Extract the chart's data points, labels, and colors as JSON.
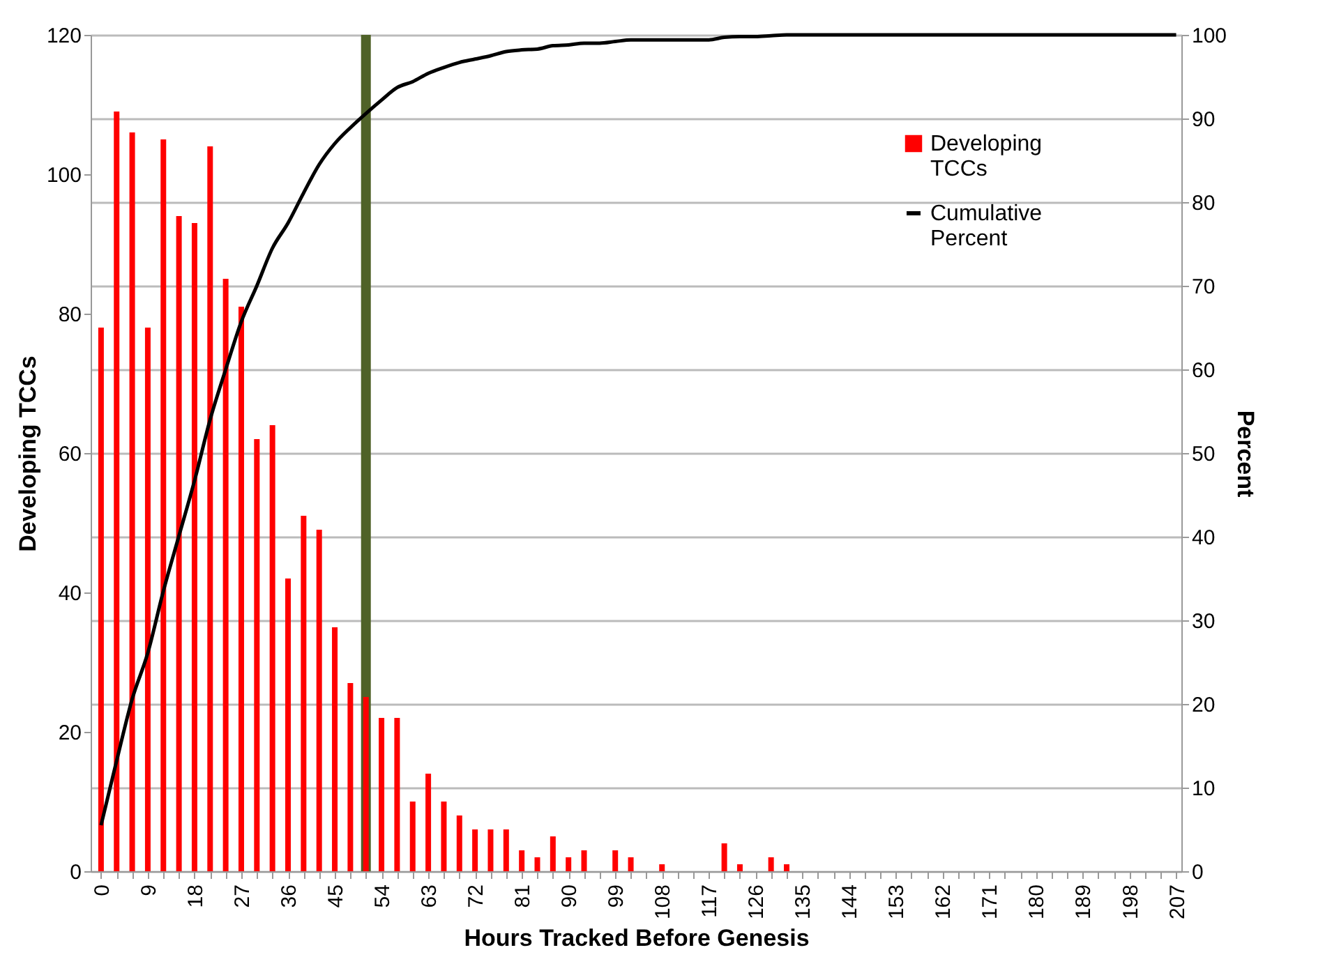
{
  "chart_data": {
    "type": "bar",
    "xlabel": "Hours Tracked Before Genesis",
    "ylabel": "Developing TCCs",
    "y2label": "Percent",
    "x": [
      0,
      3,
      6,
      9,
      12,
      15,
      18,
      21,
      24,
      27,
      30,
      33,
      36,
      39,
      42,
      45,
      48,
      51,
      54,
      57,
      60,
      63,
      66,
      69,
      72,
      75,
      78,
      81,
      84,
      87,
      90,
      93,
      96,
      99,
      102,
      105,
      108,
      111,
      114,
      117,
      120,
      123,
      126,
      129,
      132,
      135,
      138,
      141,
      144,
      147,
      150,
      153,
      156,
      159,
      162,
      165,
      168,
      171,
      174,
      177,
      180,
      183,
      186,
      189,
      192,
      195,
      198,
      201,
      204,
      207
    ],
    "series": [
      {
        "name": "Developing TCCs",
        "color": "#ff0000",
        "values": [
          78,
          109,
          106,
          78,
          105,
          94,
          93,
          104,
          85,
          81,
          62,
          64,
          42,
          51,
          49,
          35,
          27,
          25,
          22,
          22,
          10,
          14,
          10,
          8,
          6,
          6,
          6,
          3,
          2,
          5,
          2,
          3,
          0,
          3,
          2,
          0,
          1,
          0,
          0,
          0,
          4,
          1,
          0,
          2,
          1,
          0,
          0,
          0,
          0,
          0,
          0,
          0,
          0,
          0,
          0,
          0,
          0,
          0,
          0,
          0,
          0,
          0,
          0,
          0,
          0,
          0,
          0,
          0,
          0,
          0
        ]
      },
      {
        "name": "Cumulative Percent",
        "type": "line",
        "axis": "y2",
        "color": "#000000",
        "values": [
          5.5,
          13.2,
          20.6,
          26.1,
          33.5,
          40.1,
          46.7,
          54.0,
          60.0,
          65.7,
          70.0,
          74.5,
          77.5,
          81.1,
          84.5,
          87.0,
          88.9,
          90.6,
          92.2,
          93.7,
          94.4,
          95.4,
          96.1,
          96.7,
          97.1,
          97.5,
          98.0,
          98.2,
          98.3,
          98.7,
          98.8,
          99.0,
          99.0,
          99.2,
          99.4,
          99.4,
          99.4,
          99.4,
          99.4,
          99.4,
          99.7,
          99.8,
          99.8,
          99.9,
          100,
          100,
          100,
          100,
          100,
          100,
          100,
          100,
          100,
          100,
          100,
          100,
          100,
          100,
          100,
          100,
          100,
          100,
          100,
          100,
          100,
          100,
          100,
          100,
          100,
          100
        ]
      }
    ],
    "xlim": [
      -2,
      208
    ],
    "xticks": [
      0,
      {
        "value": 3,
        "label": null
      },
      {
        "value": 6,
        "label": null
      },
      9,
      {
        "value": 12,
        "label": null
      },
      {
        "value": 15,
        "label": null
      },
      18,
      {
        "value": 21,
        "label": null
      },
      {
        "value": 24,
        "label": null
      },
      27,
      {
        "value": 30,
        "label": null
      },
      {
        "value": 33,
        "label": null
      },
      36,
      {
        "value": 39,
        "label": null
      },
      {
        "value": 42,
        "label": null
      },
      45,
      {
        "value": 48,
        "label": null
      },
      {
        "value": 51,
        "label": null
      },
      54,
      {
        "value": 57,
        "label": null
      },
      {
        "value": 60,
        "label": null
      },
      63,
      {
        "value": 66,
        "label": null
      },
      {
        "value": 69,
        "label": null
      },
      72,
      {
        "value": 75,
        "label": null
      },
      {
        "value": 78,
        "label": null
      },
      81,
      {
        "value": 84,
        "label": null
      },
      {
        "value": 87,
        "label": null
      },
      90,
      {
        "value": 93,
        "label": null
      },
      {
        "value": 96,
        "label": null
      },
      99,
      {
        "value": 102,
        "label": null
      },
      {
        "value": 105,
        "label": null
      },
      108,
      {
        "value": 111,
        "label": null
      },
      {
        "value": 114,
        "label": null
      },
      117,
      {
        "value": 120,
        "label": null
      },
      {
        "value": 123,
        "label": null
      },
      126,
      {
        "value": 129,
        "label": null
      },
      {
        "value": 132,
        "label": null
      },
      135,
      {
        "value": 138,
        "label": null
      },
      {
        "value": 141,
        "label": null
      },
      144,
      {
        "value": 147,
        "label": null
      },
      {
        "value": 150,
        "label": null
      },
      153,
      {
        "value": 156,
        "label": null
      },
      {
        "value": 159,
        "label": null
      },
      162,
      {
        "value": 165,
        "label": null
      },
      {
        "value": 168,
        "label": null
      },
      171,
      {
        "value": 174,
        "label": null
      },
      {
        "value": 177,
        "label": null
      },
      180,
      {
        "value": 183,
        "label": null
      },
      {
        "value": 186,
        "label": null
      },
      189,
      {
        "value": 192,
        "label": null
      },
      {
        "value": 195,
        "label": null
      },
      198,
      {
        "value": 201,
        "label": null
      },
      {
        "value": 204,
        "label": null
      },
      207
    ],
    "ylim": [
      0,
      120
    ],
    "yticks": [
      0,
      20,
      40,
      60,
      80,
      100,
      120
    ],
    "y2lim": [
      0,
      100
    ],
    "y2ticks": [
      0,
      10,
      20,
      30,
      40,
      50,
      60,
      70,
      80,
      90,
      100
    ],
    "ref_lines": [
      {
        "axis": "x",
        "value": 51,
        "color": "#4f6228"
      }
    ],
    "grid": "y",
    "legend": "top right"
  }
}
